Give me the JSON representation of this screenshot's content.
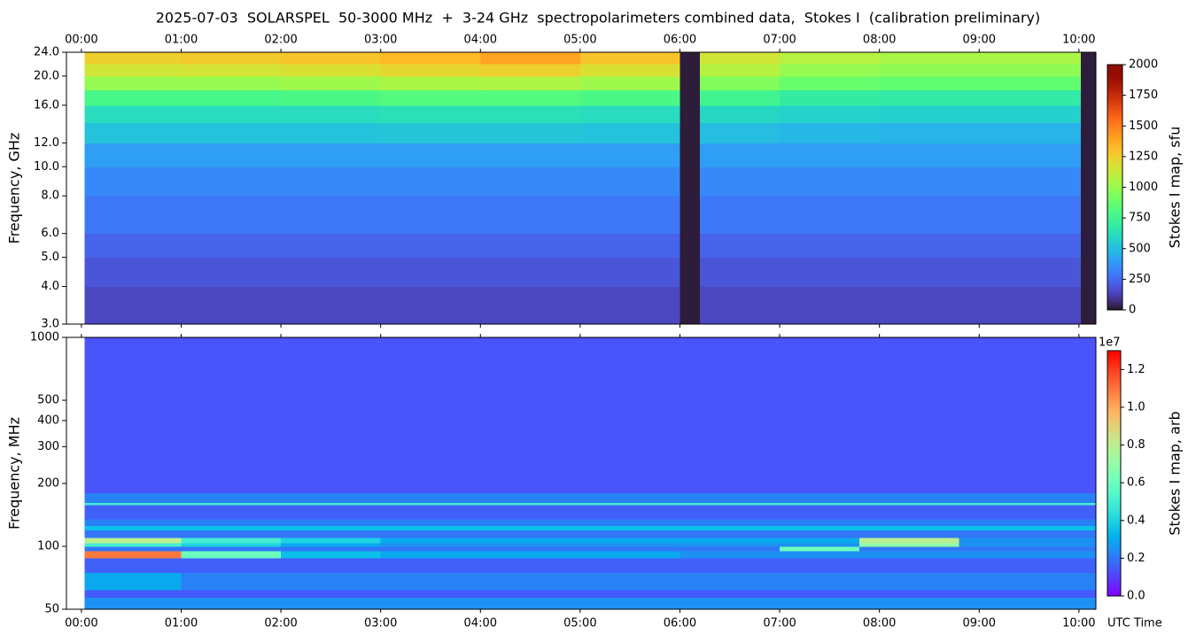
{
  "chart_data": [
    {
      "type": "heatmap",
      "title": "2025-07-03  SOLARSPEL  50-3000 MHz  +  3-24 GHz  spectropolarimeters combined data,  Stokes I  (calibration preliminary)",
      "ylabel": "Frequency, GHz",
      "ylog": true,
      "colormap": "turbo",
      "clim": [
        0,
        2000
      ],
      "cticks": [
        0,
        250,
        500,
        750,
        1000,
        1250,
        1500,
        1750,
        2000
      ],
      "clabel": "Stokes I map, sfu",
      "xlim": [
        -0.15,
        10.17
      ],
      "ylim": [
        3,
        24
      ],
      "xticks": [
        {
          "value": 0,
          "label": "00:00"
        },
        {
          "value": 1,
          "label": "01:00"
        },
        {
          "value": 2,
          "label": "02:00"
        },
        {
          "value": 3,
          "label": "03:00"
        },
        {
          "value": 4,
          "label": "04:00"
        },
        {
          "value": 5,
          "label": "05:00"
        },
        {
          "value": 6,
          "label": "06:00"
        },
        {
          "value": 7,
          "label": "07:00"
        },
        {
          "value": 8,
          "label": "08:00"
        },
        {
          "value": 9,
          "label": "09:00"
        },
        {
          "value": 10,
          "label": "10:00"
        }
      ],
      "yticks": [
        {
          "value": 3,
          "label": "3.0"
        },
        {
          "value": 4,
          "label": "4.0"
        },
        {
          "value": 5,
          "label": "5.0"
        },
        {
          "value": 6,
          "label": "6.0"
        },
        {
          "value": 8,
          "label": "8.0"
        },
        {
          "value": 10,
          "label": "10.0"
        },
        {
          "value": 12,
          "label": "12.0"
        },
        {
          "value": 16,
          "label": "16.0"
        },
        {
          "value": 20,
          "label": "20.0"
        },
        {
          "value": 24,
          "label": "24.0"
        }
      ],
      "x_edges": [
        0.03,
        1,
        2,
        3,
        4,
        5,
        6,
        6.2,
        7,
        8,
        9,
        10.02,
        10.17
      ],
      "y_edges": [
        3,
        4,
        5,
        6,
        8,
        10,
        12,
        14,
        16,
        18,
        20,
        22,
        24
      ],
      "values": [
        [
          150,
          150,
          150,
          150,
          150,
          150,
          20,
          150,
          150,
          150,
          150,
          20
        ],
        [
          190,
          190,
          190,
          190,
          190,
          190,
          20,
          190,
          190,
          190,
          190,
          20
        ],
        [
          230,
          230,
          230,
          230,
          230,
          230,
          20,
          230,
          230,
          230,
          230,
          20
        ],
        [
          290,
          290,
          290,
          290,
          290,
          290,
          20,
          290,
          290,
          290,
          290,
          20
        ],
        [
          340,
          340,
          340,
          340,
          340,
          340,
          20,
          340,
          340,
          340,
          340,
          20
        ],
        [
          400,
          400,
          400,
          400,
          400,
          400,
          20,
          400,
          400,
          400,
          400,
          20
        ],
        [
          520,
          520,
          520,
          530,
          530,
          520,
          20,
          500,
          480,
          470,
          470,
          20
        ],
        [
          620,
          620,
          620,
          640,
          640,
          620,
          20,
          600,
          580,
          570,
          570,
          20
        ],
        [
          780,
          780,
          790,
          820,
          820,
          790,
          20,
          760,
          700,
          690,
          690,
          20
        ],
        [
          1000,
          1000,
          1020,
          1050,
          1060,
          1020,
          20,
          950,
          880,
          860,
          860,
          20
        ],
        [
          1150,
          1160,
          1180,
          1220,
          1250,
          1180,
          20,
          1080,
          1000,
          980,
          980,
          20
        ],
        [
          1250,
          1270,
          1290,
          1330,
          1400,
          1290,
          20,
          1150,
          1080,
          1050,
          1050,
          20
        ]
      ]
    },
    {
      "type": "heatmap",
      "ylabel": "Frequency, MHz",
      "xlabel": "UTC Time",
      "ylog": true,
      "colormap": "rainbow",
      "clim": [
        0,
        13000000
      ],
      "cticks": [
        {
          "value": 0,
          "label": "0.0"
        },
        {
          "value": 2000000,
          "label": "0.2"
        },
        {
          "value": 4000000,
          "label": "0.4"
        },
        {
          "value": 6000000,
          "label": "0.6"
        },
        {
          "value": 8000000,
          "label": "0.8"
        },
        {
          "value": 10000000,
          "label": "1.0"
        },
        {
          "value": 12000000,
          "label": "1.2"
        }
      ],
      "coffset": "1e7",
      "clabel": "Stokes I map, arb",
      "xlim": [
        -0.15,
        10.17
      ],
      "ylim": [
        50,
        1000
      ],
      "xticks": [
        {
          "value": 0,
          "label": "00:00"
        },
        {
          "value": 1,
          "label": "01:00"
        },
        {
          "value": 2,
          "label": "02:00"
        },
        {
          "value": 3,
          "label": "03:00"
        },
        {
          "value": 4,
          "label": "04:00"
        },
        {
          "value": 5,
          "label": "05:00"
        },
        {
          "value": 6,
          "label": "06:00"
        },
        {
          "value": 7,
          "label": "07:00"
        },
        {
          "value": 8,
          "label": "08:00"
        },
        {
          "value": 9,
          "label": "09:00"
        },
        {
          "value": 10,
          "label": "10:00"
        }
      ],
      "yticks": [
        50,
        100,
        200,
        300,
        400,
        500,
        1000
      ],
      "x_edges": [
        0.03,
        1,
        2,
        3,
        4,
        5,
        6,
        7,
        7.8,
        8.8,
        10.17
      ],
      "y_edges": [
        50,
        57,
        62,
        75,
        88,
        95,
        100,
        104,
        110,
        120,
        126,
        135,
        158,
        162,
        180,
        1000
      ],
      "values": [
        [
          2500000,
          2500000,
          2500000,
          2500000,
          2500000,
          2500000,
          2500000,
          2500000,
          2500000,
          2500000
        ],
        [
          1500000,
          1500000,
          1500000,
          1500000,
          1500000,
          1500000,
          1500000,
          1500000,
          1500000,
          1500000
        ],
        [
          3000000,
          2200000,
          2200000,
          2200000,
          2200000,
          2200000,
          2200000,
          2200000,
          2200000,
          2200000
        ],
        [
          1600000,
          1600000,
          1600000,
          1600000,
          1600000,
          1600000,
          1600000,
          1600000,
          1600000,
          1600000
        ],
        [
          11000000,
          6000000,
          3500000,
          3000000,
          3000000,
          3000000,
          2500000,
          2500000,
          2500000,
          2500000
        ],
        [
          2000000,
          2000000,
          2000000,
          2000000,
          2000000,
          2000000,
          2000000,
          6000000,
          2000000,
          2000000
        ],
        [
          5000000,
          4000000,
          3000000,
          2500000,
          2500000,
          2500000,
          2500000,
          2500000,
          7000000,
          2500000
        ],
        [
          8000000,
          5000000,
          4000000,
          3000000,
          3000000,
          3000000,
          3000000,
          3000000,
          8000000,
          2500000
        ],
        [
          2000000,
          2000000,
          2000000,
          2000000,
          2000000,
          2000000,
          2000000,
          2000000,
          2000000,
          2000000
        ],
        [
          3500000,
          3500000,
          3500000,
          3500000,
          3500000,
          3500000,
          3500000,
          3500000,
          3500000,
          3500000
        ],
        [
          2200000,
          2200000,
          2200000,
          2200000,
          2200000,
          2200000,
          2200000,
          2200000,
          2200000,
          2200000
        ],
        [
          1600000,
          1600000,
          1600000,
          1600000,
          1600000,
          1600000,
          1600000,
          1600000,
          1600000,
          1600000
        ],
        [
          5000000,
          5000000,
          5000000,
          5000000,
          5000000,
          5000000,
          5000000,
          5000000,
          5000000,
          5000000
        ],
        [
          2200000,
          2200000,
          2200000,
          2200000,
          2200000,
          2200000,
          2200000,
          2200000,
          2200000,
          2200000
        ],
        [
          1400000,
          1400000,
          1400000,
          1400000,
          1400000,
          1400000,
          1400000,
          1400000,
          1400000,
          1400000
        ]
      ]
    }
  ]
}
